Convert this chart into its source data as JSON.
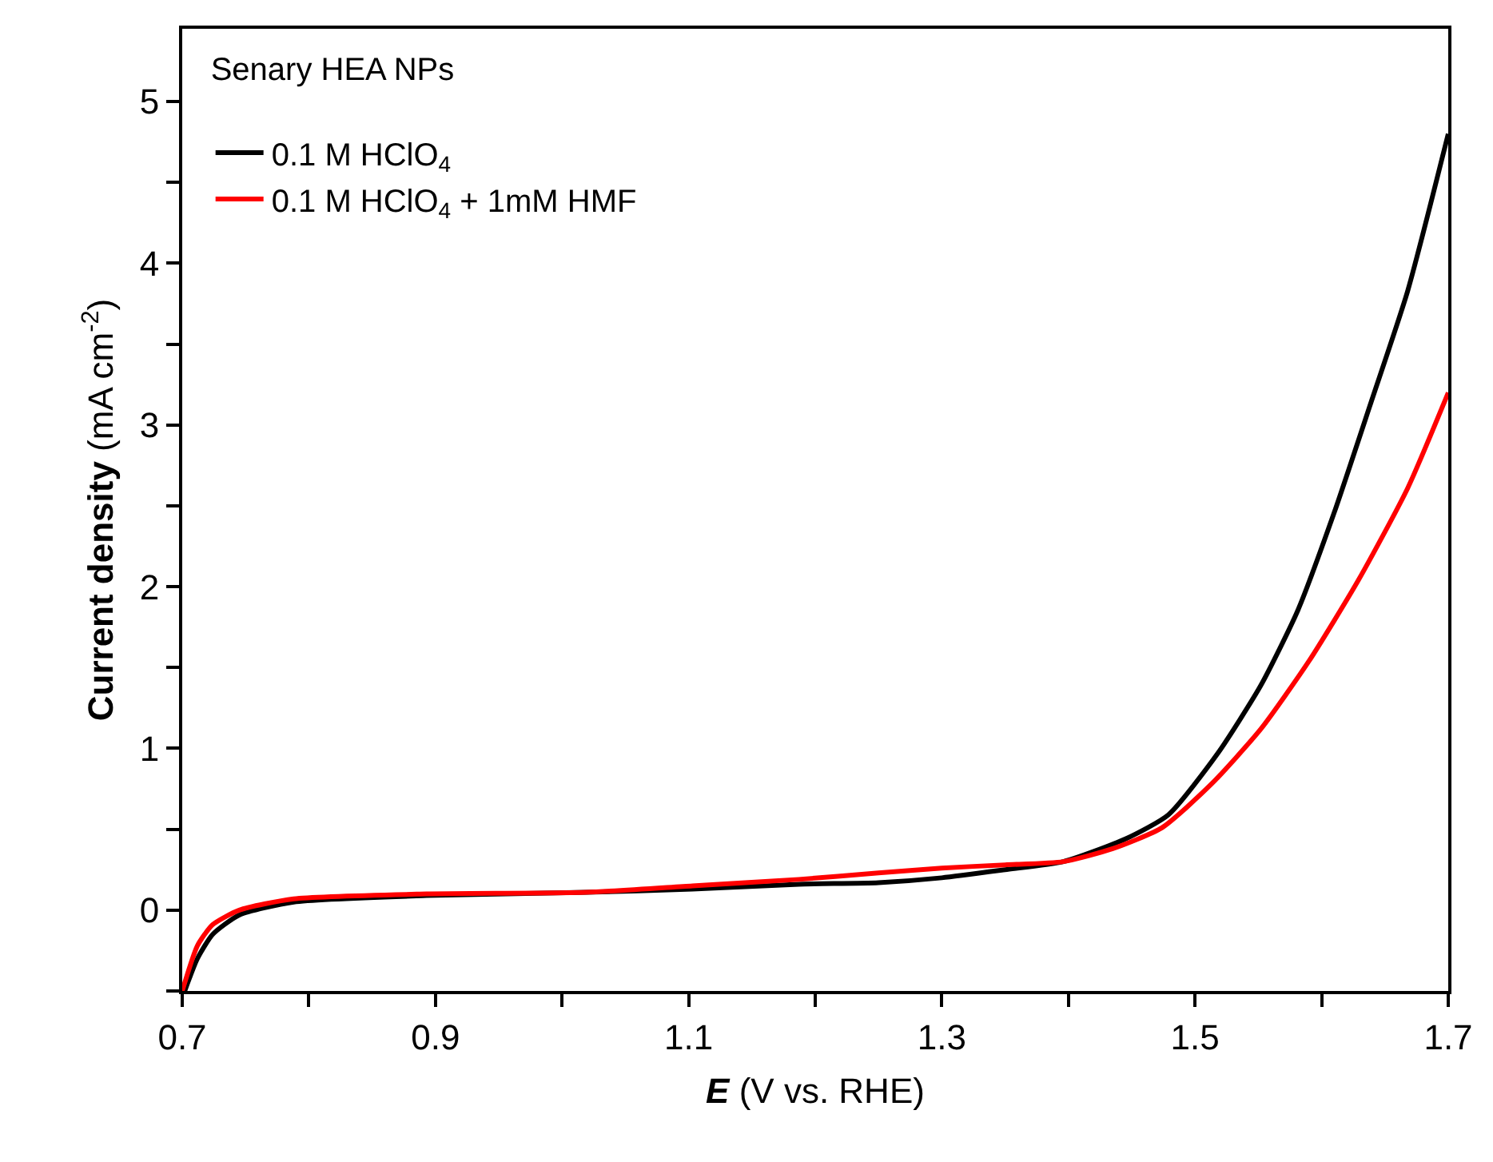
{
  "chart_data": {
    "type": "line",
    "xlabel": "E (V vs. RHE)",
    "ylabel": "Current density (mA cm$^{-2}$)",
    "legend_title": "Senary HEA NPs",
    "legend": "top left",
    "marker": "none",
    "line_style": "solid",
    "xlim": [
      0.7,
      1.7
    ],
    "ylim": [
      -0.5,
      5.45
    ],
    "xticks": [
      0.7,
      {
        "value": 0.8,
        "label": null
      },
      0.9,
      {
        "value": 1.0,
        "label": null
      },
      1.1,
      {
        "value": 1.2,
        "label": null
      },
      1.3,
      {
        "value": 1.4,
        "label": null
      },
      1.5,
      {
        "value": 1.6,
        "label": null
      },
      1.7
    ],
    "yticks": [
      {
        "value": -0.5,
        "label": null
      },
      0,
      {
        "value": 0.5,
        "label": null
      },
      1,
      {
        "value": 1.5,
        "label": null
      },
      2,
      {
        "value": 2.5,
        "label": null
      },
      3,
      {
        "value": 3.5,
        "label": null
      },
      4,
      {
        "value": 4.5,
        "label": null
      },
      5
    ],
    "series": [
      {
        "name": "0.1 M HClO$_{4}$",
        "color": "#000000",
        "x": [
          0.702,
          0.712,
          0.724,
          0.745,
          0.788,
          0.893,
          1.019,
          1.103,
          1.187,
          1.25,
          1.3,
          1.35,
          1.396,
          1.445,
          1.479,
          1.518,
          1.552,
          1.581,
          1.61,
          1.639,
          1.668,
          1.7
        ],
        "values": [
          -0.5,
          -0.3,
          -0.15,
          -0.03,
          0.05,
          0.09,
          0.11,
          0.13,
          0.16,
          0.17,
          0.2,
          0.25,
          0.3,
          0.44,
          0.59,
          0.97,
          1.39,
          1.85,
          2.46,
          3.14,
          3.83,
          4.8
        ]
      },
      {
        "name": "0.1 M HClO$_{4}$ + 1mM HMF",
        "color": "#ff0000",
        "x": [
          0.7,
          0.712,
          0.724,
          0.745,
          0.788,
          0.893,
          1.019,
          1.103,
          1.187,
          1.25,
          1.3,
          1.35,
          1.396,
          1.435,
          1.474,
          1.513,
          1.552,
          1.59,
          1.629,
          1.668,
          1.7
        ],
        "values": [
          -0.5,
          -0.22,
          -0.09,
          0.0,
          0.07,
          0.1,
          0.11,
          0.15,
          0.19,
          0.23,
          0.26,
          0.28,
          0.3,
          0.38,
          0.51,
          0.78,
          1.12,
          1.54,
          2.04,
          2.61,
          3.2
        ]
      }
    ]
  }
}
